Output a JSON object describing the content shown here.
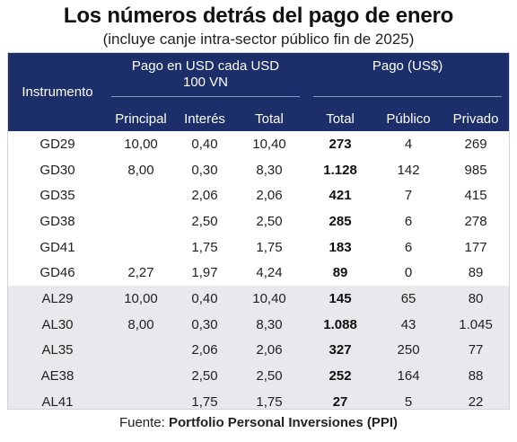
{
  "title": "Los números detrás del pago de enero",
  "subtitle": "(incluye canje intra-sector público fin de 2025)",
  "table": {
    "col_instrument": "Instrumento",
    "group_usd_line1": "Pago en USD cada USD",
    "group_usd_line2": "100 VN",
    "group_pago": "Pago (US$)",
    "sub_headers": [
      "Principal",
      "Interés",
      "Total",
      "Total",
      "Público",
      "Privado"
    ],
    "rows": [
      {
        "group": "gd",
        "cells": [
          "GD29",
          "10,00",
          "0,40",
          "10,40",
          "273",
          "4",
          "269"
        ]
      },
      {
        "group": "gd",
        "cells": [
          "GD30",
          "8,00",
          "0,30",
          "8,30",
          "1.128",
          "142",
          "985"
        ]
      },
      {
        "group": "gd",
        "cells": [
          "GD35",
          "",
          "2,06",
          "2,06",
          "421",
          "7",
          "415"
        ]
      },
      {
        "group": "gd",
        "cells": [
          "GD38",
          "",
          "2,50",
          "2,50",
          "285",
          "6",
          "278"
        ]
      },
      {
        "group": "gd",
        "cells": [
          "GD41",
          "",
          "1,75",
          "1,75",
          "183",
          "6",
          "177"
        ]
      },
      {
        "group": "gd",
        "cells": [
          "GD46",
          "2,27",
          "1,97",
          "4,24",
          "89",
          "0",
          "89"
        ]
      },
      {
        "group": "al",
        "cells": [
          "AL29",
          "10,00",
          "0,40",
          "10,40",
          "145",
          "65",
          "80"
        ]
      },
      {
        "group": "al",
        "cells": [
          "AL30",
          "8,00",
          "0,30",
          "8,30",
          "1.088",
          "43",
          "1.045"
        ]
      },
      {
        "group": "al",
        "cells": [
          "AL35",
          "",
          "2,06",
          "2,06",
          "327",
          "250",
          "77"
        ]
      },
      {
        "group": "al",
        "cells": [
          "AE38",
          "",
          "2,50",
          "2,50",
          "252",
          "164",
          "88"
        ]
      },
      {
        "group": "al",
        "cells": [
          "AL41",
          "",
          "1,75",
          "1,75",
          "27",
          "5",
          "22"
        ]
      }
    ]
  },
  "source_prefix": "Fuente: ",
  "source_name": "Portfolio Personal Inversiones (PPI)",
  "colors": {
    "header_bg": "#1c2f6b",
    "al_row_bg": "#e9e8ec"
  }
}
